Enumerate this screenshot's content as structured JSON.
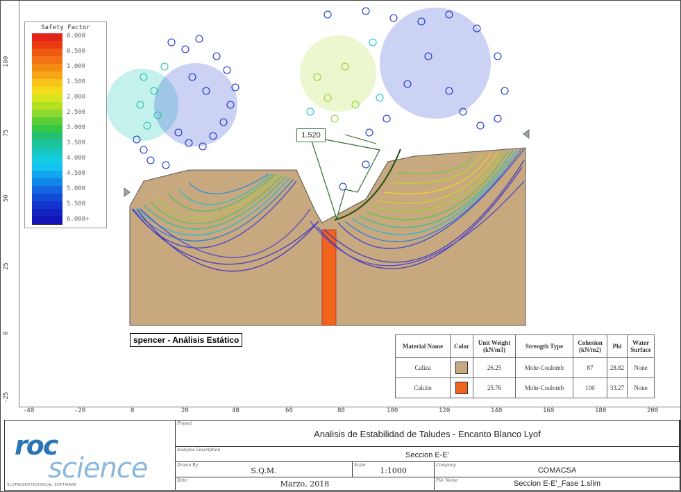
{
  "legend": {
    "title": "Safety Factor",
    "entries": [
      {
        "label": "0.000",
        "color": "#e2231a"
      },
      {
        "label": "",
        "color": "#ea3a12"
      },
      {
        "label": "0.500",
        "color": "#ee5a12"
      },
      {
        "label": "",
        "color": "#f27214"
      },
      {
        "label": "1.000",
        "color": "#f48c14"
      },
      {
        "label": "",
        "color": "#f6a616"
      },
      {
        "label": "1.500",
        "color": "#f8c418"
      },
      {
        "label": "",
        "color": "#f4dc1c"
      },
      {
        "label": "2.000",
        "color": "#d8e41e"
      },
      {
        "label": "",
        "color": "#b4e022"
      },
      {
        "label": "2.500",
        "color": "#8cd82c"
      },
      {
        "label": "",
        "color": "#5ccf38"
      },
      {
        "label": "3.000",
        "color": "#34c846"
      },
      {
        "label": "",
        "color": "#22c072"
      },
      {
        "label": "3.500",
        "color": "#1cc29c"
      },
      {
        "label": "",
        "color": "#16c6c0"
      },
      {
        "label": "4.000",
        "color": "#14cce0"
      },
      {
        "label": "",
        "color": "#14c4f0"
      },
      {
        "label": "4.500",
        "color": "#12a6ee"
      },
      {
        "label": "",
        "color": "#1286e8"
      },
      {
        "label": "5.000",
        "color": "#1266e0"
      },
      {
        "label": "",
        "color": "#124cd6"
      },
      {
        "label": "5.500",
        "color": "#1234cc"
      },
      {
        "label": "",
        "color": "#1222c2"
      },
      {
        "label": "6.000+",
        "color": "#1214b8"
      }
    ]
  },
  "critical_fs": "1.520",
  "analysis_caption": "spencer - Análisis Estático",
  "x_ticks": [
    "-40",
    "-20",
    "0",
    "20",
    "40",
    "60",
    "80",
    "100",
    "120",
    "140",
    "160",
    "180",
    "200"
  ],
  "y_ticks": [
    "100",
    "75",
    "50",
    "25",
    "0",
    "-25"
  ],
  "materials": {
    "headers": [
      "Material Name",
      "Color",
      "Unit Weight (kN/m3)",
      "Strength Type",
      "Cohesion (kN/m2)",
      "Phi",
      "Water Surface"
    ],
    "rows": [
      {
        "name": "Caliza",
        "color": "#c8a87e",
        "unit_weight": "26.25",
        "strength": "Mohr-Coulomb",
        "cohesion": "87",
        "phi": "28.82",
        "water": "None"
      },
      {
        "name": "Calcite",
        "color": "#f0641e",
        "unit_weight": "25.76",
        "strength": "Mohr-Coulomb",
        "cohesion": "100",
        "phi": "33.27",
        "water": "None"
      }
    ]
  },
  "title_block": {
    "logo_roc": "roc",
    "logo_science": "science",
    "logo_tagline": "SLOPE/GEOTECHNICAL SOFTWARE",
    "project_label": "Project",
    "project": "Analisis de Estabilidad de Taludes - Encanto Blanco Lyof",
    "desc_label": "Analysis Description",
    "description": "Seccion E-E'",
    "drawn_label": "Drawn By",
    "drawn_by": "S.Q.M.",
    "scale_label": "Scale",
    "scale": "1:1000",
    "company_label": "Company",
    "company": "COMACSA",
    "date_label": "Date",
    "date": "Marzo, 2018",
    "file_label": "File Name",
    "file_name": "Seccion E-E'_Fase 1.slim"
  }
}
